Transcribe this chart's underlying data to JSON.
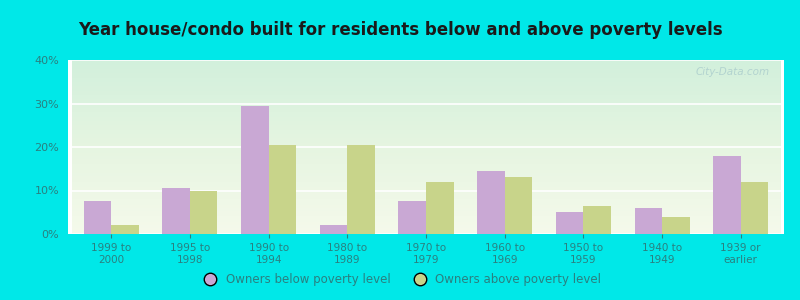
{
  "title": "Year house/condo built for residents below and above poverty levels",
  "categories": [
    "1999 to\n2000",
    "1995 to\n1998",
    "1990 to\n1994",
    "1980 to\n1989",
    "1970 to\n1979",
    "1960 to\n1969",
    "1950 to\n1959",
    "1940 to\n1949",
    "1939 or\nearlier"
  ],
  "below_poverty": [
    7.5,
    10.5,
    29.5,
    2.0,
    7.5,
    14.5,
    5.0,
    6.0,
    18.0
  ],
  "above_poverty": [
    2.0,
    10.0,
    20.5,
    20.5,
    12.0,
    13.0,
    6.5,
    4.0,
    12.0
  ],
  "below_color": "#c9a8d4",
  "above_color": "#c8d48a",
  "ylim": [
    0,
    40
  ],
  "yticks": [
    0,
    10,
    20,
    30,
    40
  ],
  "ytick_labels": [
    "0%",
    "10%",
    "20%",
    "30%",
    "40%"
  ],
  "legend_below": "Owners below poverty level",
  "legend_above": "Owners above poverty level",
  "fig_bg_color": "#00e8e8",
  "title_fontsize": 12,
  "bar_width": 0.35,
  "watermark": "City-Data.com",
  "tick_color": "#2a8080",
  "title_color": "#1a1a1a"
}
